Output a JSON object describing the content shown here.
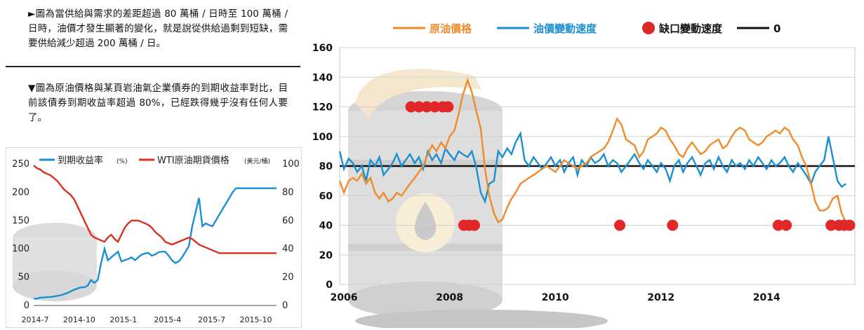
{
  "captions": {
    "top": "►圖為當供給與需求的差距超過 80 萬桶 / 日時至 100 萬桶 / 日時，油價才發生顯著的變化，就是說從供給過剩到短缺，需要供給減少超過 200 萬桶 / 日。",
    "middle": "▼圖為原油價格與某頁岩油氣企業債券的到期收益率對比，目前該債券到期收益率超過 80%，已經跌得幾乎沒有任何人要了。"
  },
  "colors": {
    "yield": "#1a8fd1",
    "wti": "#d9301f",
    "oil_price": "#f08a2a",
    "oil_speed": "#1a8fd1",
    "gap_speed": "#e02828",
    "zero_line": "#111111"
  },
  "chart_data": [
    {
      "type": "line",
      "legend_placement": "top",
      "series": [
        {
          "name": "到期收益率",
          "unit": "(%)",
          "axis": "left",
          "x": [
            0,
            1,
            2,
            3,
            4,
            5,
            6,
            7,
            8,
            9,
            10,
            11,
            12,
            13,
            14,
            15,
            16,
            17,
            18,
            19,
            20,
            21,
            22,
            23,
            24,
            25,
            26,
            27,
            28,
            29,
            30,
            31,
            32,
            33,
            34,
            35,
            36,
            37,
            38,
            39,
            40,
            41,
            42,
            43,
            44,
            45,
            46,
            47,
            48,
            49,
            50,
            51,
            52,
            53,
            54,
            55,
            56,
            57,
            58,
            59,
            60,
            61,
            62,
            63,
            64,
            65,
            66,
            67,
            68,
            69,
            70,
            71,
            72
          ],
          "values": [
            12,
            12,
            14,
            14,
            15,
            15,
            16,
            17,
            18,
            20,
            22,
            25,
            28,
            30,
            32,
            32,
            35,
            45,
            40,
            45,
            75,
            100,
            80,
            85,
            90,
            95,
            78,
            80,
            82,
            85,
            80,
            85,
            90,
            92,
            93,
            88,
            90,
            94,
            95,
            95,
            88,
            80,
            75,
            78,
            85,
            95,
            105,
            140,
            165,
            190,
            140,
            145,
            142,
            140,
            150,
            160,
            170,
            180,
            190,
            200,
            207,
            207,
            207,
            207,
            207,
            207,
            207,
            207,
            207,
            207,
            207,
            207,
            207
          ]
        },
        {
          "name": "WTI原油期貨價格",
          "unit": "(美元/桶)",
          "axis": "right",
          "x": [
            0,
            1,
            2,
            3,
            4,
            5,
            6,
            7,
            8,
            9,
            10,
            11,
            12,
            13,
            14,
            15,
            16,
            17,
            18,
            19,
            20,
            21,
            22,
            23,
            24,
            25,
            26,
            27,
            28,
            29,
            30,
            31,
            32,
            33,
            34,
            35,
            36,
            37,
            38,
            39,
            40,
            41,
            42,
            43,
            44,
            45,
            46,
            47,
            48,
            49,
            50,
            51,
            52,
            53,
            54,
            55,
            56,
            57,
            58,
            59,
            60,
            61,
            62,
            63,
            64,
            65,
            66,
            67,
            68,
            69,
            70,
            71,
            72
          ],
          "values": [
            99,
            97,
            96,
            94,
            93,
            92,
            90,
            88,
            85,
            82,
            80,
            78,
            75,
            70,
            65,
            60,
            55,
            50,
            48,
            47,
            46,
            45,
            48,
            50,
            47,
            45,
            50,
            55,
            58,
            60,
            60,
            60,
            59,
            58,
            57,
            55,
            52,
            50,
            48,
            45,
            44,
            43,
            44,
            45,
            46,
            47,
            48,
            47,
            45,
            43,
            42,
            41,
            40,
            39,
            38,
            37,
            37,
            37,
            37,
            37,
            37,
            37,
            37,
            37,
            37,
            37,
            37,
            37,
            37,
            37,
            37,
            37,
            37
          ]
        }
      ],
      "x_tick_labels": [
        "2014-7",
        "2014-10",
        "2015-1",
        "2015-4",
        "2015-7",
        "2015-10"
      ],
      "y_left": {
        "ticks": [
          "0",
          "50",
          "100",
          "150",
          "200",
          "250"
        ],
        "lim": [
          0,
          250
        ]
      },
      "y_right": {
        "ticks": [
          "0",
          "20",
          "40",
          "60",
          "80",
          "100"
        ],
        "lim": [
          0,
          100
        ]
      },
      "grid": false
    },
    {
      "type": "line",
      "legend_placement": "top",
      "series": [
        {
          "name": "原油價格",
          "x": [
            2006.0,
            2006.08,
            2006.17,
            2006.25,
            2006.33,
            2006.42,
            2006.5,
            2006.58,
            2006.67,
            2006.75,
            2006.83,
            2006.92,
            2007.0,
            2007.08,
            2007.17,
            2007.25,
            2007.33,
            2007.42,
            2007.5,
            2007.58,
            2007.67,
            2007.75,
            2007.83,
            2007.92,
            2008.0,
            2008.08,
            2008.17,
            2008.25,
            2008.33,
            2008.42,
            2008.5,
            2008.58,
            2008.67,
            2008.75,
            2008.83,
            2008.92,
            2009.0,
            2009.08,
            2009.17,
            2009.25,
            2009.33,
            2009.42,
            2009.5,
            2009.58,
            2009.67,
            2009.75,
            2009.83,
            2009.92,
            2010.0,
            2010.08,
            2010.17,
            2010.25,
            2010.33,
            2010.42,
            2010.5,
            2010.58,
            2010.67,
            2010.75,
            2010.83,
            2010.92,
            2011.0,
            2011.08,
            2011.17,
            2011.25,
            2011.33,
            2011.42,
            2011.5,
            2011.58,
            2011.67,
            2011.75,
            2011.83,
            2011.92,
            2012.0,
            2012.08,
            2012.17,
            2012.25,
            2012.33,
            2012.42,
            2012.5,
            2012.58,
            2012.67,
            2012.75,
            2012.83,
            2012.92,
            2013.0,
            2013.08,
            2013.17,
            2013.25,
            2013.33,
            2013.42,
            2013.5,
            2013.58,
            2013.67,
            2013.75,
            2013.83,
            2013.92,
            2014.0,
            2014.08,
            2014.17,
            2014.25,
            2014.33,
            2014.42,
            2014.5,
            2014.58,
            2014.67,
            2014.75,
            2014.83,
            2014.92,
            2015.0,
            2015.08,
            2015.17,
            2015.25,
            2015.33,
            2015.42,
            2015.5,
            2015.58
          ],
          "values": [
            70,
            62,
            70,
            72,
            70,
            75,
            68,
            72,
            62,
            58,
            62,
            56,
            58,
            62,
            60,
            64,
            68,
            72,
            76,
            80,
            88,
            94,
            90,
            96,
            92,
            100,
            104,
            115,
            128,
            138,
            130,
            118,
            105,
            78,
            60,
            48,
            42,
            44,
            52,
            58,
            62,
            68,
            70,
            72,
            74,
            76,
            78,
            80,
            78,
            76,
            80,
            84,
            82,
            80,
            78,
            80,
            82,
            86,
            88,
            90,
            92,
            96,
            104,
            112,
            108,
            98,
            96,
            94,
            86,
            90,
            98,
            100,
            102,
            106,
            104,
            98,
            94,
            88,
            86,
            92,
            96,
            92,
            88,
            90,
            94,
            96,
            98,
            92,
            94,
            100,
            104,
            106,
            104,
            98,
            96,
            94,
            96,
            100,
            102,
            104,
            102,
            106,
            104,
            98,
            94,
            86,
            80,
            68,
            56,
            50,
            50,
            52,
            58,
            60,
            48,
            42
          ]
        },
        {
          "name": "油價變動速度",
          "x": [
            2006.0,
            2006.08,
            2006.17,
            2006.25,
            2006.33,
            2006.42,
            2006.5,
            2006.58,
            2006.67,
            2006.75,
            2006.83,
            2006.92,
            2007.0,
            2007.08,
            2007.17,
            2007.25,
            2007.33,
            2007.42,
            2007.5,
            2007.58,
            2007.67,
            2007.75,
            2007.83,
            2007.92,
            2008.0,
            2008.08,
            2008.17,
            2008.25,
            2008.33,
            2008.42,
            2008.5,
            2008.58,
            2008.67,
            2008.75,
            2008.83,
            2008.92,
            2009.0,
            2009.08,
            2009.17,
            2009.25,
            2009.33,
            2009.42,
            2009.5,
            2009.58,
            2009.67,
            2009.75,
            2009.83,
            2009.92,
            2010.0,
            2010.08,
            2010.17,
            2010.25,
            2010.33,
            2010.42,
            2010.5,
            2010.58,
            2010.67,
            2010.75,
            2010.83,
            2010.92,
            2011.0,
            2011.08,
            2011.17,
            2011.25,
            2011.33,
            2011.42,
            2011.5,
            2011.58,
            2011.67,
            2011.75,
            2011.83,
            2011.92,
            2012.0,
            2012.08,
            2012.17,
            2012.25,
            2012.33,
            2012.42,
            2012.5,
            2012.58,
            2012.67,
            2012.75,
            2012.83,
            2012.92,
            2013.0,
            2013.08,
            2013.17,
            2013.25,
            2013.33,
            2013.42,
            2013.5,
            2013.58,
            2013.67,
            2013.75,
            2013.83,
            2013.92,
            2014.0,
            2014.08,
            2014.17,
            2014.25,
            2014.33,
            2014.42,
            2014.5,
            2014.58,
            2014.67,
            2014.75,
            2014.83,
            2014.92,
            2015.0,
            2015.08,
            2015.17,
            2015.25,
            2015.33,
            2015.42,
            2015.5,
            2015.58
          ],
          "values": [
            90,
            78,
            85,
            82,
            76,
            80,
            70,
            84,
            80,
            86,
            74,
            78,
            82,
            88,
            80,
            84,
            88,
            82,
            86,
            78,
            90,
            84,
            88,
            82,
            92,
            88,
            84,
            90,
            88,
            86,
            90,
            80,
            62,
            56,
            68,
            70,
            90,
            86,
            92,
            88,
            96,
            102,
            84,
            80,
            86,
            82,
            78,
            82,
            86,
            80,
            84,
            76,
            82,
            86,
            74,
            84,
            80,
            86,
            82,
            84,
            88,
            80,
            84,
            82,
            76,
            80,
            84,
            88,
            82,
            78,
            84,
            80,
            76,
            82,
            78,
            70,
            80,
            84,
            76,
            82,
            86,
            80,
            74,
            82,
            84,
            78,
            86,
            80,
            76,
            84,
            80,
            82,
            78,
            84,
            80,
            86,
            82,
            78,
            84,
            80,
            82,
            86,
            80,
            76,
            82,
            78,
            74,
            68,
            76,
            80,
            84,
            100,
            86,
            70,
            66,
            68
          ]
        },
        {
          "name": "缺口變動速度",
          "type": "scatter",
          "x": [
            2007.35,
            2007.5,
            2007.65,
            2007.8,
            2007.95,
            2008.05,
            2008.35,
            2008.45,
            2008.55,
            2011.3,
            2012.3,
            2014.3,
            2014.45,
            2015.3,
            2015.45,
            2015.55,
            2015.65
          ],
          "values": [
            120,
            120,
            120,
            120,
            120,
            120,
            40,
            40,
            40,
            40,
            40,
            40,
            40,
            40,
            40,
            40,
            40
          ]
        },
        {
          "name": "0",
          "type": "reference-line",
          "value": 80
        }
      ],
      "x_tick_labels": [
        "2006",
        "2008",
        "2010",
        "2012",
        "2014"
      ],
      "x_ticks": [
        2006,
        2008,
        2010,
        2012,
        2014
      ],
      "xlim": [
        2006,
        2015.75
      ],
      "y_ticks": [
        "0",
        "20",
        "40",
        "60",
        "80",
        "100",
        "120",
        "140",
        "160"
      ],
      "ylim": [
        0,
        160
      ],
      "grid": true
    }
  ]
}
